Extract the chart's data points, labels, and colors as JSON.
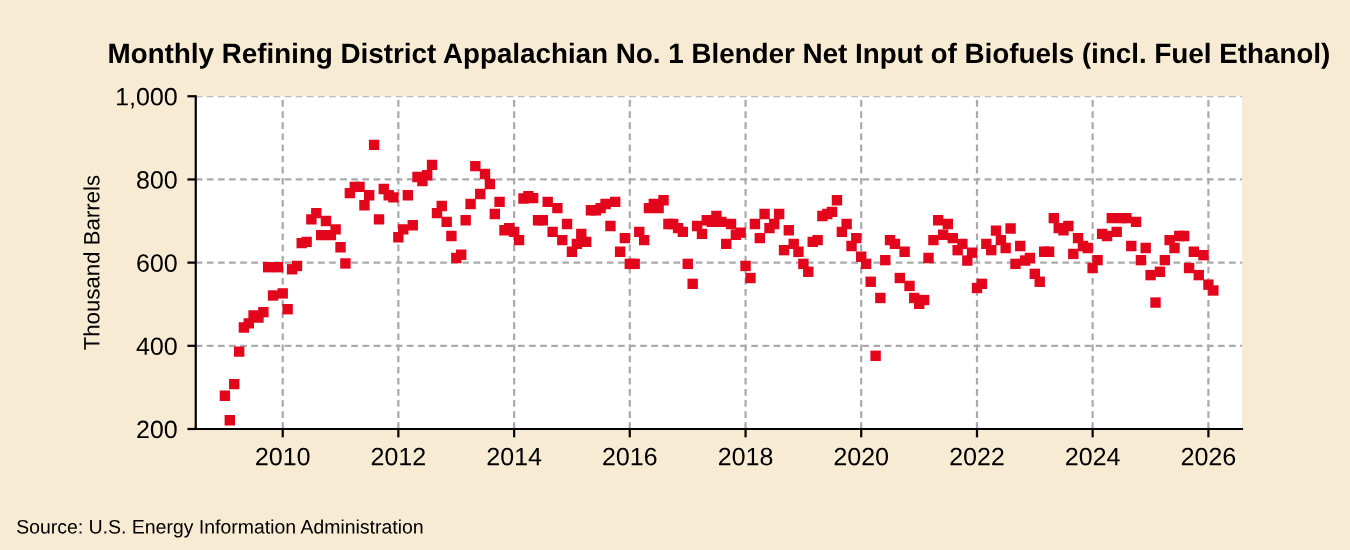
{
  "chart_data": {
    "type": "scatter",
    "title": "Monthly Refining District Appalachian No. 1 Blender Net Input of Biofuels (incl. Fuel Ethanol)",
    "ylabel": "Thousand Barrels",
    "annotations": [
      "Source: U.S. Energy Information Administration"
    ],
    "marker": "square",
    "grid": true,
    "x": [
      "2009-01",
      "2009-02",
      "2009-03",
      "2009-04",
      "2009-05",
      "2009-06",
      "2009-07",
      "2009-08",
      "2009-09",
      "2009-10",
      "2009-11",
      "2009-12",
      "2010-01",
      "2010-02",
      "2010-03",
      "2010-04",
      "2010-05",
      "2010-06",
      "2010-07",
      "2010-08",
      "2010-09",
      "2010-10",
      "2010-11",
      "2010-12",
      "2011-01",
      "2011-02",
      "2011-03",
      "2011-04",
      "2011-05",
      "2011-06",
      "2011-07",
      "2011-08",
      "2011-09",
      "2011-10",
      "2011-11",
      "2011-12",
      "2012-01",
      "2012-02",
      "2012-03",
      "2012-04",
      "2012-05",
      "2012-06",
      "2012-07",
      "2012-08",
      "2012-09",
      "2012-10",
      "2012-11",
      "2012-12",
      "2013-01",
      "2013-02",
      "2013-03",
      "2013-04",
      "2013-05",
      "2013-06",
      "2013-07",
      "2013-08",
      "2013-09",
      "2013-10",
      "2013-11",
      "2013-12",
      "2014-01",
      "2014-02",
      "2014-03",
      "2014-04",
      "2014-05",
      "2014-06",
      "2014-07",
      "2014-08",
      "2014-09",
      "2014-10",
      "2014-11",
      "2014-12",
      "2015-01",
      "2015-02",
      "2015-03",
      "2015-04",
      "2015-05",
      "2015-06",
      "2015-07",
      "2015-08",
      "2015-09",
      "2015-10",
      "2015-11",
      "2015-12",
      "2016-01",
      "2016-02",
      "2016-03",
      "2016-04",
      "2016-05",
      "2016-06",
      "2016-07",
      "2016-08",
      "2016-09",
      "2016-10",
      "2016-11",
      "2016-12",
      "2017-01",
      "2017-02",
      "2017-03",
      "2017-04",
      "2017-05",
      "2017-06",
      "2017-07",
      "2017-08",
      "2017-09",
      "2017-10",
      "2017-11",
      "2017-12",
      "2018-01",
      "2018-02",
      "2018-03",
      "2018-04",
      "2018-05",
      "2018-06",
      "2018-07",
      "2018-08",
      "2018-09",
      "2018-10",
      "2018-11",
      "2018-12",
      "2019-01",
      "2019-02",
      "2019-03",
      "2019-04",
      "2019-05",
      "2019-06",
      "2019-07",
      "2019-08",
      "2019-09",
      "2019-10",
      "2019-11",
      "2019-12",
      "2020-01",
      "2020-02",
      "2020-03",
      "2020-04",
      "2020-05",
      "2020-06",
      "2020-07",
      "2020-08",
      "2020-09",
      "2020-10",
      "2020-11",
      "2020-12",
      "2021-01",
      "2021-02",
      "2021-03",
      "2021-04",
      "2021-05",
      "2021-06",
      "2021-07",
      "2021-08",
      "2021-09",
      "2021-10",
      "2021-11",
      "2021-12",
      "2022-01",
      "2022-02",
      "2022-03",
      "2022-04",
      "2022-05",
      "2022-06",
      "2022-07",
      "2022-08",
      "2022-09",
      "2022-10",
      "2022-11",
      "2022-12",
      "2023-01",
      "2023-02",
      "2023-03",
      "2023-04",
      "2023-05",
      "2023-06",
      "2023-07",
      "2023-08",
      "2023-09",
      "2023-10",
      "2023-11",
      "2023-12",
      "2024-01",
      "2024-02",
      "2024-03",
      "2024-04",
      "2024-05",
      "2024-06",
      "2024-07",
      "2024-08",
      "2024-09",
      "2024-10",
      "2024-11",
      "2024-12",
      "2025-01",
      "2025-02",
      "2025-03",
      "2025-04",
      "2025-05",
      "2025-06",
      "2025-07",
      "2025-08",
      "2025-09",
      "2025-10",
      "2025-11",
      "2025-12",
      "2026-01",
      "2026-02"
    ],
    "series": [
      {
        "color": "#e3051b",
        "values": [
          280,
          221,
          308,
          386,
          444,
          454,
          473,
          468,
          481,
          589,
          521,
          589,
          526,
          488,
          584,
          592,
          647,
          650,
          704,
          719,
          666,
          700,
          666,
          680,
          637,
          598,
          767,
          782,
          782,
          738,
          762,
          883,
          704,
          777,
          762,
          757,
          661,
          680,
          762,
          690,
          806,
          796,
          810,
          835,
          719,
          736,
          698,
          664,
          611,
          619,
          702,
          741,
          832,
          765,
          813,
          789,
          717,
          746,
          678,
          683,
          674,
          654,
          754,
          760,
          755,
          702,
          702,
          746,
          674,
          731,
          654,
          693,
          626,
          645,
          669,
          650,
          726,
          726,
          731,
          741,
          688,
          746,
          626,
          659,
          597,
          597,
          674,
          654,
          731,
          741,
          731,
          750,
          693,
          693,
          683,
          674,
          597,
          549,
          688,
          669,
          702,
          698,
          712,
          698,
          645,
          693,
          667,
          672,
          592,
          563,
          693,
          659,
          717,
          683,
          693,
          717,
          630,
          678,
          645,
          626,
          597,
          578,
          650,
          654,
          712,
          717,
          722,
          750,
          674,
          693,
          640,
          659,
          614,
          597,
          554,
          376,
          515,
          606,
          654,
          645,
          563,
          626,
          544,
          515,
          501,
          510,
          611,
          654,
          702,
          667,
          693,
          659,
          630,
          645,
          605,
          624,
          539,
          549,
          645,
          630,
          677,
          654,
          635,
          682,
          597,
          640,
          605,
          611,
          573,
          554,
          626,
          626,
          707,
          683,
          678,
          688,
          621,
          659,
          640,
          635,
          587,
          606,
          669,
          664,
          707,
          674,
          707,
          707,
          640,
          698,
          606,
          635,
          570,
          504,
          578,
          606,
          654,
          635,
          664,
          664,
          587,
          626,
          570,
          618,
          547,
          533
        ]
      }
    ],
    "xlim": [
      "2008-07",
      "2026-08"
    ],
    "xticks": [
      {
        "value": "2010",
        "label": "2010"
      },
      {
        "value": "2012",
        "label": "2012"
      },
      {
        "value": "2014",
        "label": "2014"
      },
      {
        "value": "2016",
        "label": "2016"
      },
      {
        "value": "2018",
        "label": "2018"
      },
      {
        "value": "2020",
        "label": "2020"
      },
      {
        "value": "2022",
        "label": "2022"
      },
      {
        "value": "2024",
        "label": "2024"
      },
      {
        "value": "2026",
        "label": "2026"
      }
    ],
    "ylim": [
      200,
      1000
    ],
    "yticks": [
      200,
      400,
      600,
      800,
      {
        "value": 1000,
        "label": "1,000"
      }
    ]
  }
}
